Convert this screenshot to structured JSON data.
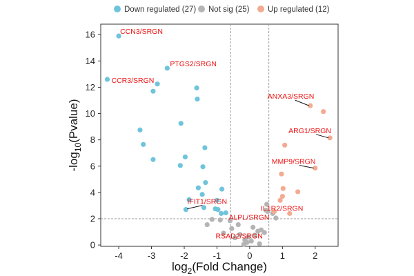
{
  "chart_data": {
    "type": "scatter",
    "title": "",
    "xlabel_base": "log",
    "xlabel_sub": "2",
    "xlabel_rest": "(Fold Change)",
    "ylabel_pre": "-log",
    "ylabel_sub": "10",
    "ylabel_post": "(Pvalue)",
    "xlim": [
      -4.55,
      2.7
    ],
    "ylim": [
      -0.1,
      16.8
    ],
    "xticks": [
      -4,
      -3,
      -2,
      -1,
      0,
      1,
      2
    ],
    "yticks": [
      0,
      2,
      4,
      6,
      8,
      10,
      12,
      14,
      16
    ],
    "thresholds": {
      "x": [
        -0.585,
        0.585
      ],
      "y": 2.0
    },
    "legend": [
      {
        "name": "Down regulated (27)",
        "color": "#6fc4dc"
      },
      {
        "name": "Not sig (25)",
        "color": "#b4b4b4"
      },
      {
        "name": "Up regulated (12)",
        "color": "#f2ab92"
      }
    ],
    "series": [
      {
        "name": "Down regulated (27)",
        "color": "#6fc4dc",
        "points": [
          [
            -4.0,
            15.9
          ],
          [
            -2.52,
            13.45
          ],
          [
            -4.35,
            12.6
          ],
          [
            -2.82,
            12.25
          ],
          [
            -2.95,
            11.7
          ],
          [
            -1.62,
            11.95
          ],
          [
            -1.6,
            11.1
          ],
          [
            -2.1,
            9.25
          ],
          [
            -3.35,
            8.75
          ],
          [
            -3.25,
            7.65
          ],
          [
            -1.37,
            7.4
          ],
          [
            -1.97,
            6.7
          ],
          [
            -2.95,
            6.5
          ],
          [
            -2.12,
            6.05
          ],
          [
            -1.43,
            5.95
          ],
          [
            -1.35,
            4.75
          ],
          [
            -1.57,
            4.35
          ],
          [
            -1.45,
            3.85
          ],
          [
            -0.85,
            4.25
          ],
          [
            -1.85,
            3.45
          ],
          [
            -1.0,
            3.4
          ],
          [
            -1.95,
            2.7
          ],
          [
            -1.4,
            2.85
          ],
          [
            -1.05,
            2.75
          ],
          [
            -0.97,
            2.7
          ],
          [
            -0.87,
            2.4
          ],
          [
            -0.73,
            2.45
          ]
        ]
      },
      {
        "name": "Not sig (25)",
        "color": "#b4b4b4",
        "points": [
          [
            -1.15,
            1.95
          ],
          [
            -0.9,
            1.9
          ],
          [
            -1.3,
            1.55
          ],
          [
            -0.6,
            1.85
          ],
          [
            -0.35,
            1.55
          ],
          [
            -0.55,
            1.25
          ],
          [
            -0.8,
            0.9
          ],
          [
            -0.45,
            0.55
          ],
          [
            -0.3,
            0.8
          ],
          [
            -0.15,
            0.4
          ],
          [
            -0.08,
            0.2
          ],
          [
            0.05,
            0.3
          ],
          [
            0.15,
            0.75
          ],
          [
            -0.05,
            0.6
          ],
          [
            0.25,
            1.05
          ],
          [
            0.1,
            1.35
          ],
          [
            0.35,
            1.15
          ],
          [
            0.45,
            0.95
          ],
          [
            0.3,
            0.1
          ],
          [
            0.5,
            2.65
          ],
          [
            0.52,
            3.1
          ],
          [
            0.55,
            2.55
          ],
          [
            0.7,
            2.4
          ],
          [
            0.8,
            2.05
          ],
          [
            -0.18,
            0.05
          ]
        ]
      },
      {
        "name": "Up regulated (12)",
        "color": "#f2ab92",
        "points": [
          [
            1.85,
            10.6
          ],
          [
            2.25,
            10.15
          ],
          [
            2.45,
            8.15
          ],
          [
            1.07,
            7.6
          ],
          [
            2.0,
            5.85
          ],
          [
            0.97,
            5.4
          ],
          [
            1.02,
            4.3
          ],
          [
            1.47,
            4.05
          ],
          [
            1.0,
            3.7
          ],
          [
            0.93,
            3.4
          ],
          [
            0.75,
            2.55
          ],
          [
            1.22,
            2.4
          ]
        ]
      }
    ],
    "annotations": [
      {
        "text": "CCN3/SRGN",
        "x": -4.0,
        "y": 15.9
      },
      {
        "text": "PTGS2/SRGN",
        "x": -2.52,
        "y": 13.45
      },
      {
        "text": "CCR3/SRGN",
        "x": -4.35,
        "y": 12.6
      },
      {
        "text": "ANXA3/SRGN",
        "x": 1.85,
        "y": 10.6
      },
      {
        "text": "ARG1/SRGN",
        "x": 2.45,
        "y": 8.15
      },
      {
        "text": "MMP9/SRGN",
        "x": 2.0,
        "y": 5.85
      },
      {
        "text": "IL1R2/SRGN",
        "x": 0.93,
        "y": 3.4
      },
      {
        "text": "IFIT1/SRGN",
        "x": -1.95,
        "y": 2.7
      },
      {
        "text": "ALPL/SRGN",
        "x": 0.75,
        "y": 2.55
      },
      {
        "text": "RSAD2/SRGN",
        "x": -0.45,
        "y": 1.55
      }
    ],
    "annotation_color": "#ee1111"
  }
}
